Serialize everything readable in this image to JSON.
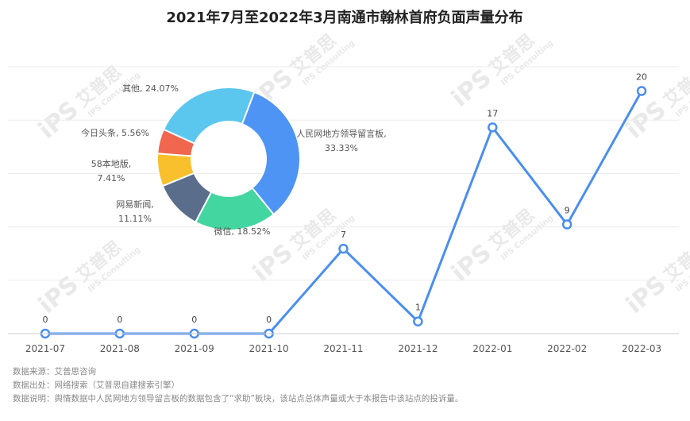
{
  "chart_data": [
    {
      "type": "line",
      "title": "2021年7月至2022年3月南通市翰林首府负面声量分布",
      "categories": [
        "2021-07",
        "2021-08",
        "2021-09",
        "2021-10",
        "2021-11",
        "2021-12",
        "2022-01",
        "2022-02",
        "2022-03"
      ],
      "values": [
        0,
        0,
        0,
        0,
        7,
        1,
        17,
        9,
        20
      ],
      "ylim": [
        0,
        22
      ],
      "grid": true,
      "color": "#4a8ef0"
    },
    {
      "type": "pie",
      "slices": [
        {
          "label": "人民网地方领导留言板",
          "value": 33.33,
          "display": "人民网地方领导留言板,\n33.33%",
          "color": "#4d94f5"
        },
        {
          "label": "微信",
          "value": 18.52,
          "display": "微信, 18.52%",
          "color": "#43d6a0"
        },
        {
          "label": "网易新闻",
          "value": 11.11,
          "display": "网易新闻,\n11.11%",
          "color": "#5a6e8c"
        },
        {
          "label": "58本地版",
          "value": 7.41,
          "display": "58本地版,\n7.41%",
          "color": "#f7c02c"
        },
        {
          "label": "今日头条",
          "value": 5.56,
          "display": "今日头条, 5.56%",
          "color": "#f0664f"
        },
        {
          "label": "其他",
          "value": 24.07,
          "display": "其他, 24.07%",
          "color": "#5cc7ee"
        }
      ]
    }
  ],
  "watermark": {
    "brand": "艾普思",
    "sub": "IPS Consulting",
    "logo": "iPS"
  },
  "footer": {
    "source": "数据来源：艾普思咨询",
    "origin": "数据出处：网络搜索（艾普思自建搜索引擎）",
    "note": "数据说明：舆情数据中人民网地方领导留言板的数据包含了“求助”板块，该站点总体声量或大于本报告中该站点的投诉量。"
  }
}
